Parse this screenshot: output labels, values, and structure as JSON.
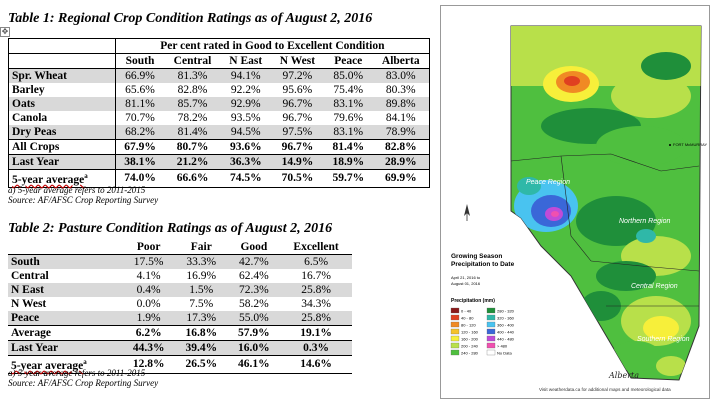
{
  "table1": {
    "title": "Table 1: Regional Crop Condition Ratings as of August 2, 2016",
    "group_header": "Per cent rated in Good to Excellent Condition",
    "columns": [
      "South",
      "Central",
      "N East",
      "N West",
      "Peace",
      "Alberta"
    ],
    "rows": [
      {
        "label": "Spr. Wheat",
        "values": [
          "66.9%",
          "81.3%",
          "94.1%",
          "97.2%",
          "85.0%",
          "83.0%"
        ]
      },
      {
        "label": "Barley",
        "values": [
          "65.6%",
          "82.8%",
          "92.2%",
          "95.6%",
          "75.4%",
          "80.3%"
        ]
      },
      {
        "label": "Oats",
        "values": [
          "81.1%",
          "85.7%",
          "92.9%",
          "96.7%",
          "83.1%",
          "89.8%"
        ]
      },
      {
        "label": "Canola",
        "values": [
          "70.7%",
          "78.2%",
          "93.5%",
          "96.7%",
          "79.6%",
          "84.1%"
        ]
      },
      {
        "label": "Dry Peas",
        "values": [
          "68.2%",
          "81.4%",
          "94.5%",
          "97.5%",
          "83.1%",
          "78.9%"
        ]
      },
      {
        "label": "All Crops",
        "values": [
          "67.9%",
          "80.7%",
          "93.6%",
          "96.7%",
          "81.4%",
          "82.8%"
        ]
      },
      {
        "label": "Last Year",
        "values": [
          "38.1%",
          "21.2%",
          "36.3%",
          "14.9%",
          "18.9%",
          "28.9%"
        ]
      },
      {
        "label": "5-year average",
        "marker": "a",
        "values": [
          "74.0%",
          "66.6%",
          "74.5%",
          "70.5%",
          "59.7%",
          "69.9%"
        ]
      }
    ],
    "footnote": "a) 5-year average refers to 2011-2015",
    "source": "Source: AF/AFSC Crop Reporting Survey"
  },
  "table2": {
    "title": "Table 2: Pasture Condition Ratings as of August 2, 2016",
    "columns": [
      "Poor",
      "Fair",
      "Good",
      "Excellent"
    ],
    "rows": [
      {
        "label": "South",
        "values": [
          "17.5%",
          "33.3%",
          "42.7%",
          "6.5%"
        ]
      },
      {
        "label": "Central",
        "values": [
          "4.1%",
          "16.9%",
          "62.4%",
          "16.7%"
        ]
      },
      {
        "label": "N East",
        "values": [
          "0.4%",
          "1.5%",
          "72.3%",
          "25.8%"
        ]
      },
      {
        "label": "N West",
        "values": [
          "0.0%",
          "7.5%",
          "58.2%",
          "34.3%"
        ]
      },
      {
        "label": "Peace",
        "values": [
          "1.9%",
          "17.3%",
          "55.0%",
          "25.8%"
        ]
      },
      {
        "label": "Average",
        "values": [
          "6.2%",
          "16.8%",
          "57.9%",
          "19.1%"
        ]
      },
      {
        "label": "Last Year",
        "values": [
          "44.3%",
          "39.4%",
          "16.0%",
          "0.3%"
        ]
      },
      {
        "label": "5-year average",
        "marker": "a",
        "values": [
          "12.8%",
          "26.5%",
          "46.1%",
          "14.6%"
        ]
      }
    ],
    "footnote": "a) 5-year average refers to 2011-2015",
    "source": "Source: AF/AFSC Crop Reporting Survey"
  },
  "map": {
    "title_line1": "Growing Season",
    "title_line2": "Precipitation to Date",
    "date_line1": "April 21, 2016 to",
    "date_line2": "August 01, 2016",
    "legend_title": "Precipitation (mm)",
    "legend_items": [
      {
        "label": "0 - 40",
        "color": "#8b1a1a"
      },
      {
        "label": "40 - 80",
        "color": "#e04020"
      },
      {
        "label": "80 - 120",
        "color": "#f08a24"
      },
      {
        "label": "120 - 160",
        "color": "#f5c22a"
      },
      {
        "label": "160 - 200",
        "color": "#f7ef3a"
      },
      {
        "label": "200 - 240",
        "color": "#b8e04a"
      },
      {
        "label": "240 - 280",
        "color": "#4fbf3f"
      },
      {
        "label": "280 - 320",
        "color": "#1f8f3a"
      },
      {
        "label": "320 - 360",
        "color": "#2fb8a8"
      },
      {
        "label": "360 - 400",
        "color": "#49c3f0"
      },
      {
        "label": "400 - 440",
        "color": "#3a67d8"
      },
      {
        "label": "440 - 480",
        "color": "#c04bd8"
      },
      {
        "label": "> 480",
        "color": "#f050b0"
      },
      {
        "label": "No Data",
        "color": "#ffffff"
      }
    ],
    "labels": {
      "fort_mcmurray": "FORT McMURRAY",
      "peace_region": "Peace Region",
      "northern_region": "Northern Region",
      "central_region": "Central Region",
      "southern_region": "Southern Region"
    },
    "footer": "Visit weatherdata.ca for additional maps and meteorological data",
    "logo_text": "Alberta"
  }
}
